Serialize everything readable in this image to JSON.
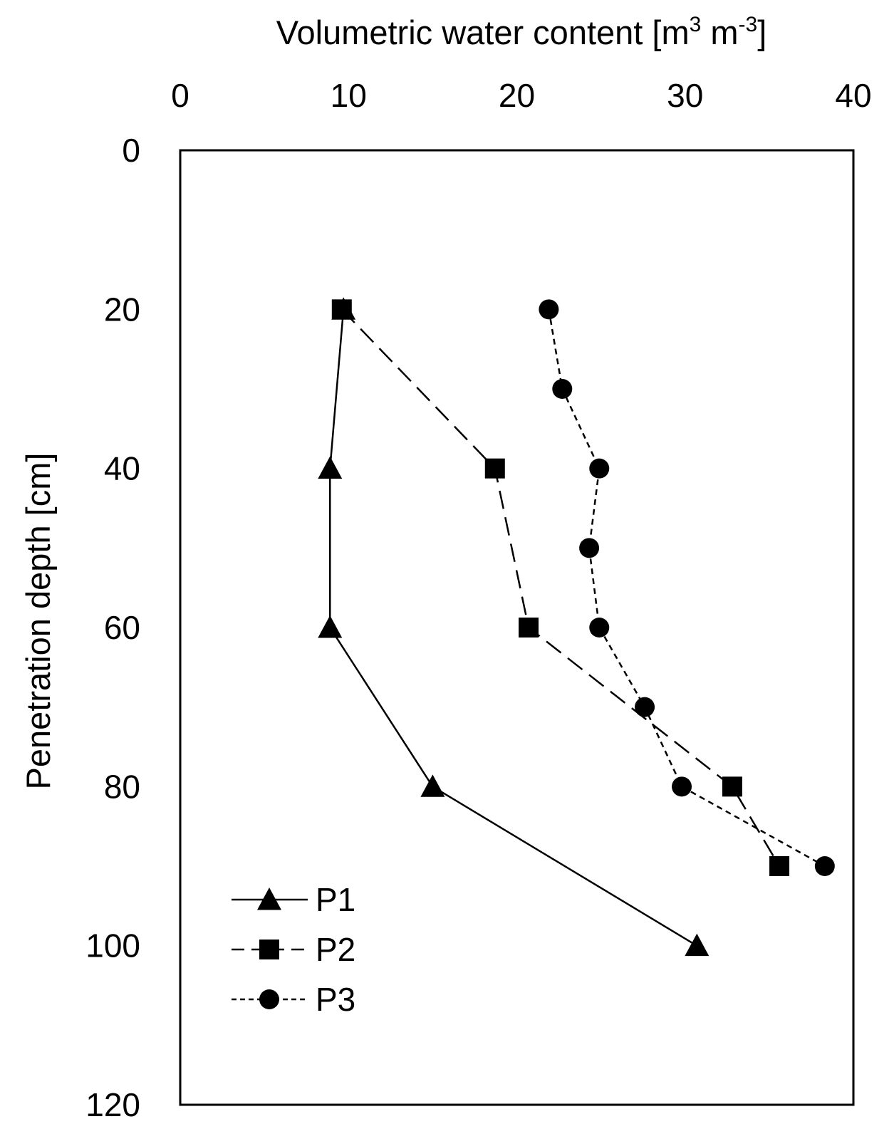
{
  "chart_data": {
    "type": "line",
    "xlabel": {
      "main": "Volumetric water content [m",
      "sup1": "3",
      "mid": " m",
      "sup2": "-3",
      "end": "]"
    },
    "ylabel": "Penetration depth [cm]",
    "x_axis_position": "top",
    "y_axis_inverted": true,
    "xlim": [
      0,
      40
    ],
    "ylim": [
      0,
      120
    ],
    "xticks": [
      0,
      10,
      20,
      30,
      40
    ],
    "yticks": [
      0,
      20,
      40,
      60,
      80,
      100,
      120
    ],
    "grid": false,
    "legend_position": "bottom-left",
    "series": [
      {
        "name": "P1",
        "line_style": "solid",
        "marker": "triangle",
        "points": [
          {
            "x": 9.7,
            "y": 20
          },
          {
            "x": 8.9,
            "y": 40
          },
          {
            "x": 8.9,
            "y": 60
          },
          {
            "x": 15.0,
            "y": 80
          },
          {
            "x": 30.7,
            "y": 100
          }
        ]
      },
      {
        "name": "P2",
        "line_style": "long-dash",
        "marker": "square",
        "points": [
          {
            "x": 9.6,
            "y": 20
          },
          {
            "x": 18.7,
            "y": 40
          },
          {
            "x": 20.7,
            "y": 60
          },
          {
            "x": 32.8,
            "y": 80
          },
          {
            "x": 35.6,
            "y": 90
          }
        ]
      },
      {
        "name": "P3",
        "line_style": "short-dash",
        "marker": "circle",
        "points": [
          {
            "x": 21.9,
            "y": 20
          },
          {
            "x": 22.7,
            "y": 30
          },
          {
            "x": 24.9,
            "y": 40
          },
          {
            "x": 24.3,
            "y": 50
          },
          {
            "x": 24.9,
            "y": 60
          },
          {
            "x": 27.6,
            "y": 70
          },
          {
            "x": 29.8,
            "y": 80
          },
          {
            "x": 38.3,
            "y": 90
          }
        ]
      }
    ]
  }
}
